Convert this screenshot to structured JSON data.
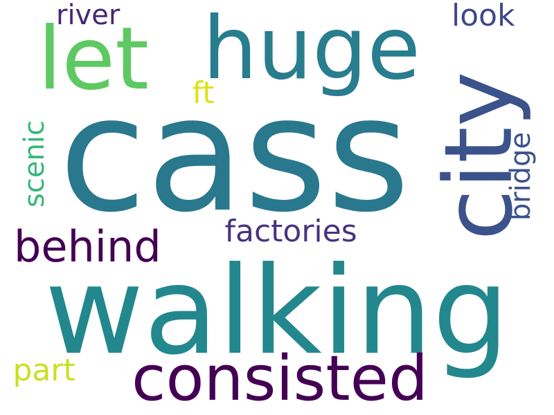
{
  "words": [
    {
      "text": "cass",
      "color": "#2a788e",
      "rotated": false
    },
    {
      "text": "walking",
      "color": "#23888e",
      "rotated": false
    },
    {
      "text": "city",
      "color": "#3b528b",
      "rotated": true
    },
    {
      "text": "huge",
      "color": "#287d8e",
      "rotated": false
    },
    {
      "text": "let",
      "color": "#5ec962",
      "rotated": false
    },
    {
      "text": "consisted",
      "color": "#440154",
      "rotated": false
    },
    {
      "text": "behind",
      "color": "#440154",
      "rotated": false
    },
    {
      "text": "factories",
      "color": "#46337f",
      "rotated": false
    },
    {
      "text": "river",
      "color": "#482677",
      "rotated": false
    },
    {
      "text": "look",
      "color": "#3e4989",
      "rotated": false
    },
    {
      "text": "bridge",
      "color": "#3b528b",
      "rotated": true
    },
    {
      "text": "scenic",
      "color": "#35b779",
      "rotated": true
    },
    {
      "text": "ft",
      "color": "#dde318",
      "rotated": false
    },
    {
      "text": "part",
      "color": "#c8e020",
      "rotated": false
    }
  ]
}
